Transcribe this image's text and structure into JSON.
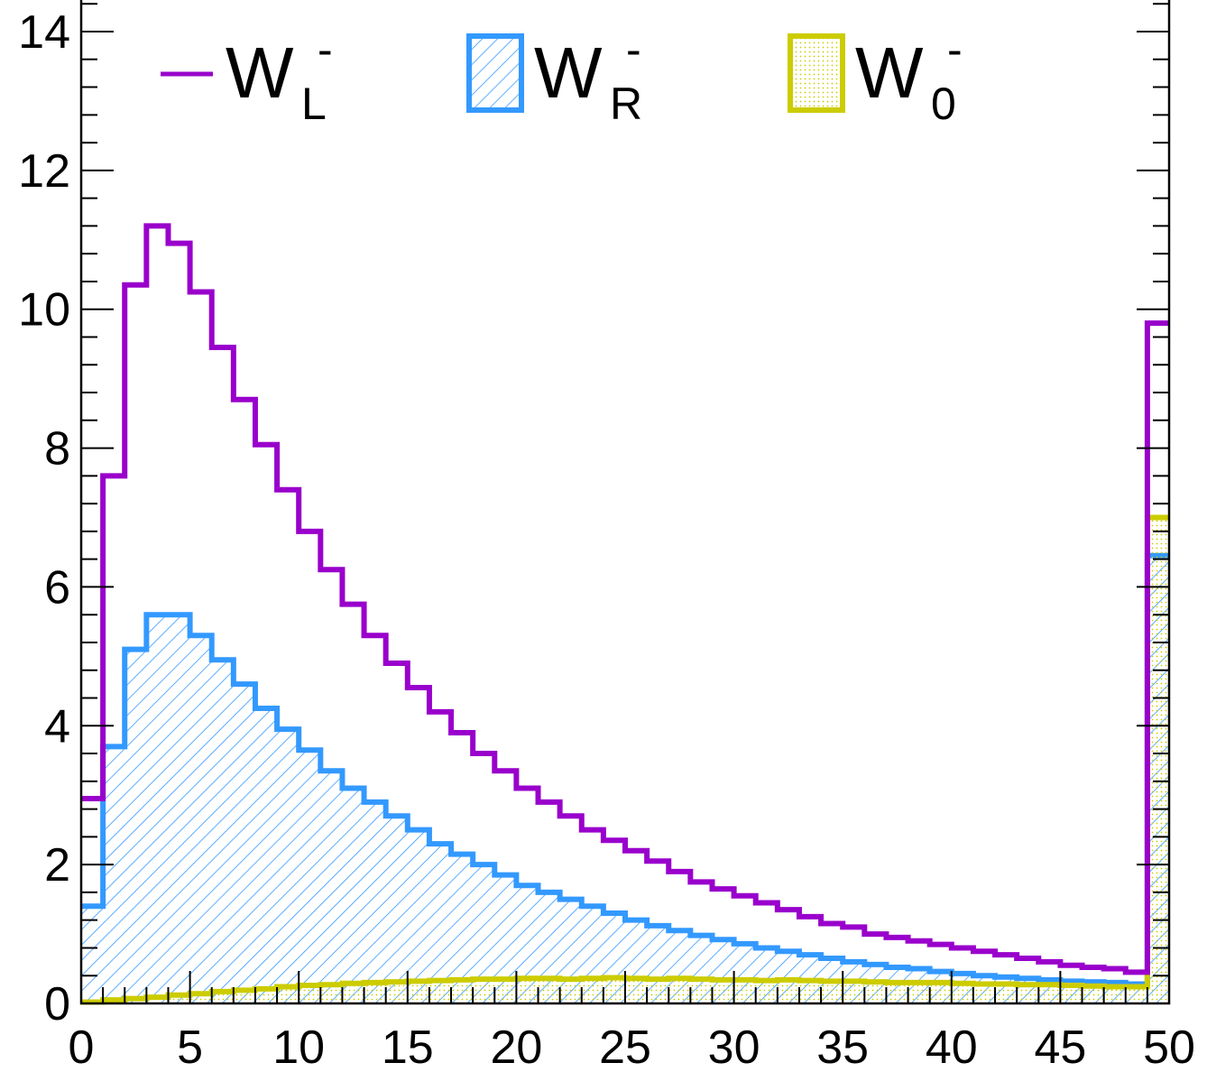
{
  "chart_data": {
    "type": "histogram",
    "title": "",
    "xlabel": "",
    "ylabel": "",
    "xlim": [
      0,
      50
    ],
    "ylim": [
      0,
      14.5
    ],
    "bin_width": 1,
    "x_ticks": [
      "0",
      "5",
      "10",
      "15",
      "20",
      "25",
      "30",
      "35",
      "40",
      "45",
      "50"
    ],
    "y_ticks": [
      "0",
      "2",
      "4",
      "6",
      "8",
      "10",
      "12",
      "14"
    ],
    "grid": false,
    "legend_position": "top",
    "series": [
      {
        "name": "W_L^-",
        "label_main": "W",
        "label_sub": "L",
        "label_sup": "-",
        "style": "line",
        "color": "#9900cc",
        "values": [
          2.95,
          7.6,
          10.35,
          11.2,
          10.95,
          10.25,
          9.45,
          8.7,
          8.05,
          7.4,
          6.8,
          6.25,
          5.75,
          5.3,
          4.9,
          4.55,
          4.2,
          3.9,
          3.6,
          3.35,
          3.1,
          2.9,
          2.7,
          2.5,
          2.35,
          2.2,
          2.05,
          1.9,
          1.75,
          1.65,
          1.55,
          1.45,
          1.35,
          1.25,
          1.15,
          1.1,
          1.0,
          0.95,
          0.9,
          0.85,
          0.8,
          0.75,
          0.7,
          0.65,
          0.6,
          0.55,
          0.52,
          0.5,
          0.45,
          9.8
        ]
      },
      {
        "name": "W_R^-",
        "label_main": "W",
        "label_sub": "R",
        "label_sup": "-",
        "style": "hatched",
        "color": "#3399ff",
        "values": [
          1.4,
          3.7,
          5.1,
          5.6,
          5.6,
          5.3,
          4.95,
          4.6,
          4.25,
          3.95,
          3.65,
          3.35,
          3.1,
          2.9,
          2.7,
          2.5,
          2.3,
          2.15,
          2.0,
          1.85,
          1.7,
          1.6,
          1.5,
          1.4,
          1.3,
          1.2,
          1.12,
          1.05,
          0.98,
          0.92,
          0.86,
          0.8,
          0.75,
          0.7,
          0.65,
          0.6,
          0.56,
          0.52,
          0.5,
          0.46,
          0.43,
          0.4,
          0.38,
          0.36,
          0.34,
          0.32,
          0.31,
          0.3,
          0.28,
          6.45
        ]
      },
      {
        "name": "W_0^-",
        "label_main": "W",
        "label_sub": "0",
        "label_sup": "-",
        "style": "dotted-fill",
        "color": "#cccc00",
        "values": [
          0.02,
          0.05,
          0.07,
          0.09,
          0.12,
          0.14,
          0.17,
          0.19,
          0.21,
          0.24,
          0.26,
          0.27,
          0.29,
          0.3,
          0.31,
          0.32,
          0.33,
          0.34,
          0.35,
          0.35,
          0.36,
          0.36,
          0.35,
          0.36,
          0.37,
          0.36,
          0.35,
          0.36,
          0.35,
          0.34,
          0.34,
          0.33,
          0.34,
          0.33,
          0.32,
          0.32,
          0.31,
          0.3,
          0.3,
          0.3,
          0.29,
          0.28,
          0.28,
          0.27,
          0.27,
          0.26,
          0.25,
          0.24,
          0.24,
          7.0
        ]
      }
    ]
  }
}
